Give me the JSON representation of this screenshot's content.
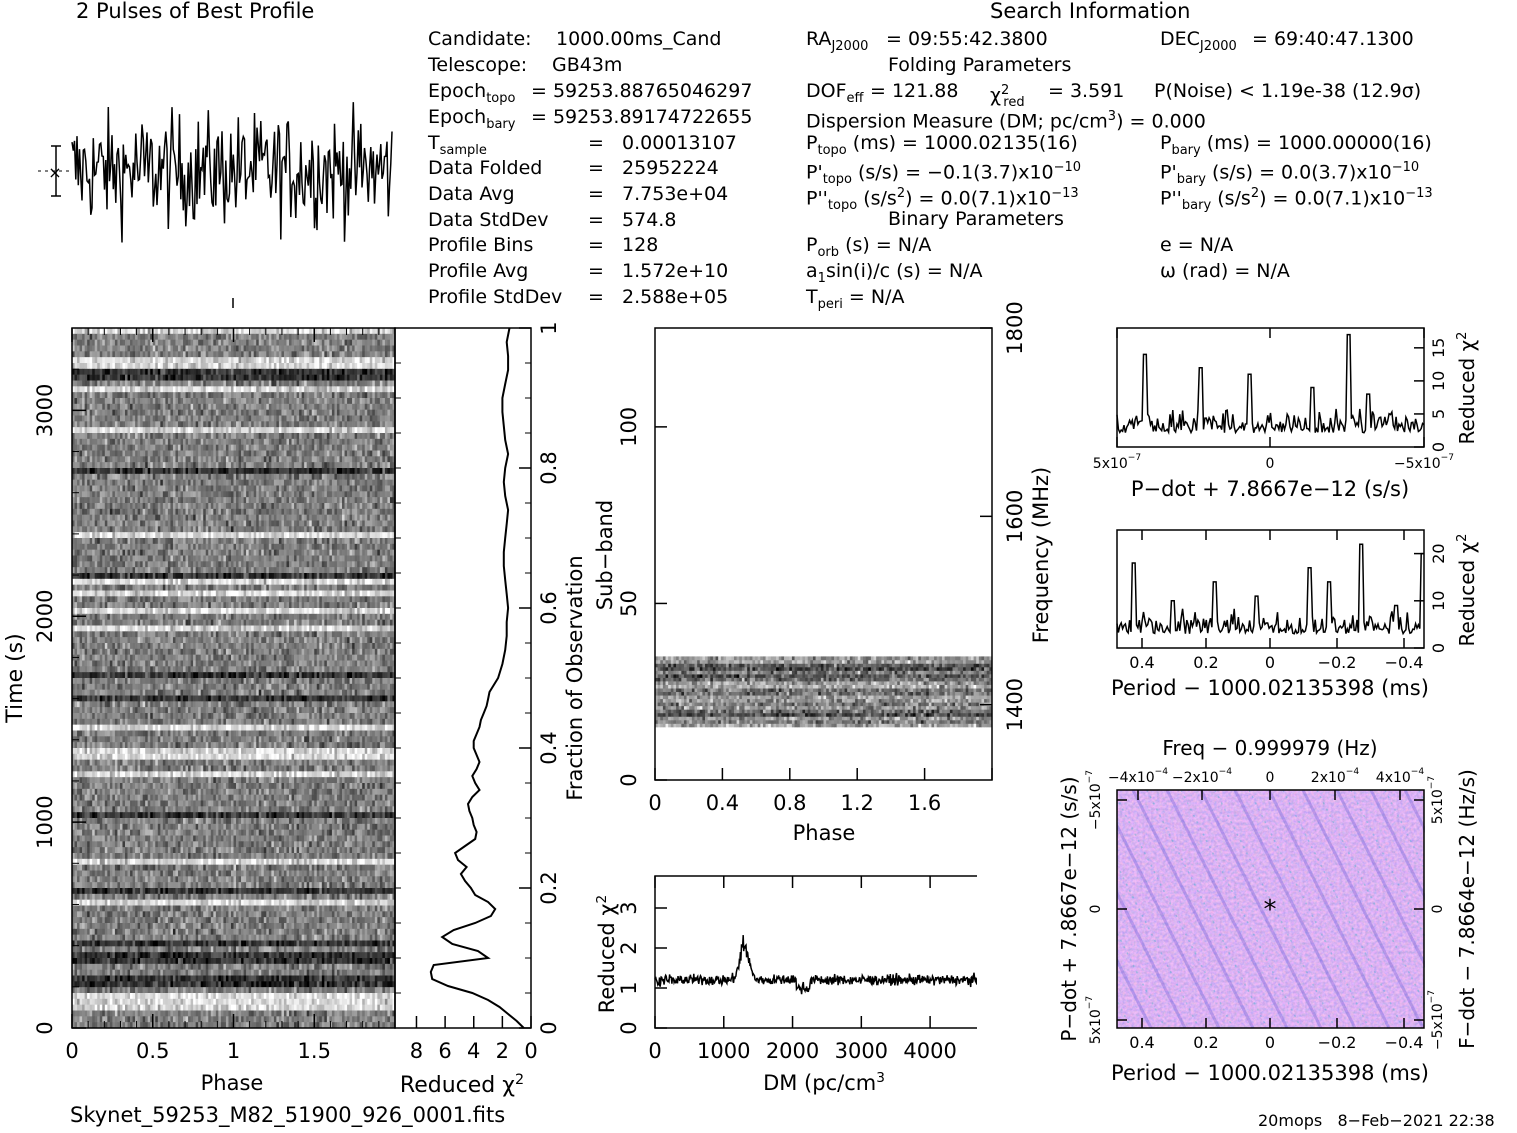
{
  "header": {
    "profile_title": "2 Pulses of Best Profile",
    "search_title": "Search Information",
    "folding_title": "Folding Parameters",
    "binary_title": "Binary Parameters"
  },
  "candidate_info": [
    {
      "label": "Candidate:",
      "value": "1000.00ms_Cand"
    },
    {
      "label": "Telescope:",
      "value": "GB43m"
    },
    {
      "label": "Epoch",
      "sub": "topo",
      "value": "= 59253.88765046297"
    },
    {
      "label": "Epoch",
      "sub": "bary",
      "value": "= 59253.89174722655"
    },
    {
      "label": "T",
      "sub": "sample",
      "value": "=   0.00013107"
    },
    {
      "label": "Data Folded",
      "value": "=   25952224"
    },
    {
      "label": "Data Avg",
      "value": "=   7.753e+04"
    },
    {
      "label": "Data StdDev",
      "value": "=   574.8"
    },
    {
      "label": "Profile Bins",
      "value": "=   128"
    },
    {
      "label": "Profile Avg",
      "value": "=   1.572e+10"
    },
    {
      "label": "Profile StdDev",
      "value": "=   2.588e+05"
    }
  ],
  "search_info": {
    "ra": "= 09:55:42.3800",
    "dec": "= 69:40:47.1300",
    "dof": "= 121.88",
    "chi2_red": "= 3.591",
    "p_noise": "P(Noise) < 1.19e-38   (12.9σ)",
    "dm": "Dispersion Measure (DM; pc/cm",
    "dm_value": ") = 0.000",
    "p_topo": "(ms) =  1000.02135(16)",
    "p_bary": "(ms) =  1000.00000(16)",
    "pd_topo": "(s/s) = −0.1(3.7)x10",
    "pd_topo_exp": "−10",
    "pd_bary": "(s/s) = 0.0(3.7)x10",
    "pd_bary_exp": "−10",
    "pdd_topo": ") = 0.0(7.1)x10",
    "pdd_topo_exp": "−13",
    "pdd_bary": ") = 0.0(7.1)x10",
    "pdd_bary_exp": "−13",
    "p_orb": "(s) = N/A",
    "e": "e = N/A",
    "a1": "sin(i)/c (s) = N/A",
    "omega": "ω (rad) = N/A",
    "t_peri": "= N/A"
  },
  "footer": {
    "filename": "Skynet_59253_M82_51900_926_0001.fits",
    "stamp": "20mops   8−Feb−2021 22:38"
  },
  "chart_data": [
    {
      "id": "pulse-profile",
      "type": "line",
      "title": "2 Pulses of Best Profile",
      "x_range": [
        0,
        2
      ],
      "n_bins": 256,
      "description_note": "noise-like folded profile, two rotations"
    },
    {
      "id": "time-phase",
      "type": "heatmap",
      "xlabel": "Phase",
      "ylabel": "Time (s)",
      "x_ticks": [
        "0",
        "0.5",
        "1",
        "1.5"
      ],
      "y_ticks": [
        "0",
        "1000",
        "2000",
        "3000"
      ],
      "xlim": [
        0,
        2
      ],
      "ylim": [
        0,
        3400
      ]
    },
    {
      "id": "time-chi2",
      "type": "line",
      "xlabel": "Reduced χ",
      "ylabel": "Fraction of Observation",
      "x_ticks": [
        "8",
        "6",
        "4",
        "2",
        "0"
      ],
      "y_ticks": [
        "0",
        "0.2",
        "0.4",
        "0.6",
        "0.8",
        "1"
      ],
      "xlim": [
        9.5,
        0
      ],
      "ylim": [
        0,
        1
      ],
      "frac": [
        0.0,
        0.01,
        0.02,
        0.03,
        0.04,
        0.05,
        0.06,
        0.07,
        0.08,
        0.09,
        0.1,
        0.11,
        0.12,
        0.13,
        0.14,
        0.15,
        0.16,
        0.17,
        0.18,
        0.19,
        0.2,
        0.21,
        0.22,
        0.23,
        0.24,
        0.25,
        0.26,
        0.27,
        0.28,
        0.29,
        0.3,
        0.31,
        0.32,
        0.33,
        0.34,
        0.35,
        0.36,
        0.37,
        0.38,
        0.39,
        0.4,
        0.41,
        0.42,
        0.43,
        0.44,
        0.45,
        0.46,
        0.47,
        0.48,
        0.49,
        0.5,
        0.52,
        0.54,
        0.56,
        0.58,
        0.6,
        0.62,
        0.64,
        0.66,
        0.68,
        0.7,
        0.72,
        0.74,
        0.76,
        0.78,
        0.8,
        0.82,
        0.84,
        0.86,
        0.88,
        0.9,
        0.92,
        0.94,
        0.96,
        0.98,
        1.0
      ],
      "chi2": [
        0.5,
        1.0,
        1.6,
        2.2,
        3.0,
        4.1,
        5.8,
        6.9,
        7.0,
        6.8,
        3.0,
        3.7,
        5.5,
        6.2,
        5.4,
        3.9,
        2.8,
        2.5,
        3.0,
        3.9,
        4.2,
        4.6,
        4.9,
        4.5,
        5.1,
        5.3,
        4.6,
        3.9,
        3.8,
        4.0,
        4.1,
        4.3,
        4.4,
        4.1,
        3.6,
        3.9,
        4.1,
        3.8,
        3.6,
        3.8,
        4.0,
        4.0,
        3.8,
        3.6,
        3.5,
        3.3,
        3.1,
        3.0,
        2.9,
        2.6,
        2.3,
        2.0,
        1.8,
        1.7,
        1.7,
        1.6,
        1.7,
        1.8,
        1.9,
        1.9,
        1.8,
        1.7,
        1.6,
        1.8,
        1.9,
        1.8,
        1.6,
        1.8,
        1.9,
        2.0,
        2.0,
        1.8,
        1.6,
        1.6,
        1.7,
        1.5
      ]
    },
    {
      "id": "subband-phase",
      "type": "heatmap",
      "xlabel": "Phase",
      "ylabel": "Sub−band",
      "y2label": "Frequency (MHz)",
      "x_ticks": [
        "0",
        "0.4",
        "0.8",
        "1.2",
        "1.6",
        "2"
      ],
      "y_ticks": [
        "0",
        "50",
        "100"
      ],
      "y2_ticks": [
        "1400",
        "1600",
        "1800"
      ],
      "xlim": [
        0,
        2
      ],
      "ylim": [
        0,
        128
      ],
      "active_subbands": [
        15,
        35
      ]
    },
    {
      "id": "dm-chi2",
      "type": "line",
      "xlabel": "DM (pc/cm",
      "ylabel": "Reduced χ",
      "x_ticks": [
        "0",
        "1000",
        "2000",
        "3000",
        "4000"
      ],
      "y_ticks": [
        "0",
        "1",
        "2",
        "3"
      ],
      "xlim": [
        0,
        4900
      ],
      "ylim": [
        0,
        3.8
      ],
      "baseline": 1.2,
      "peak_dm": 1300,
      "peak_value": 2.3
    },
    {
      "id": "pdot-chi2",
      "type": "line",
      "xlabel": "P−dot + 7.8667e−12 (s/s)",
      "ylabel": "Reduced χ",
      "x_ticks": [
        "5x10",
        "0",
        "−5x10"
      ],
      "x_tick_exp": "−7",
      "y_ticks": [
        "0",
        "5",
        "10",
        "15"
      ],
      "ylim": [
        0,
        18
      ]
    },
    {
      "id": "period-chi2",
      "type": "line",
      "xlabel": "Period − 1000.02135398 (ms)",
      "ylabel": "Reduced χ",
      "x_ticks": [
        "0.4",
        "0.2",
        "0",
        "−0.2",
        "−0.4"
      ],
      "y_ticks": [
        "0",
        "10",
        "20"
      ],
      "ylim": [
        0,
        25
      ]
    },
    {
      "id": "p-pdot-plane",
      "type": "heatmap",
      "title": "Freq − 0.999979 (Hz)",
      "xlabel": "Period − 1000.02135398 (ms)",
      "ylabel": "P−dot + 7.8667e−12 (s/s)",
      "y2label": "F−dot − 7.8664e−12 (Hz/s)",
      "x_ticks": [
        "0.4",
        "0.2",
        "0",
        "−0.2",
        "−0.4"
      ],
      "top_ticks": [
        "−4x10",
        "−2x10",
        "0",
        "2x10",
        "4x10"
      ],
      "top_tick_exp": "−4",
      "y_ticks": [
        "5x10",
        "0",
        "−5x10"
      ],
      "y_tick_exp": "−7",
      "y2_ticks": [
        "5x10",
        "0",
        "−5x10"
      ],
      "y2_tick_exp": "−7",
      "colors": {
        "base": "#b9b0f0",
        "hi": "#f0c8f0",
        "lo": "#6a5cd8",
        "teal": "#30b0c8"
      }
    }
  ]
}
